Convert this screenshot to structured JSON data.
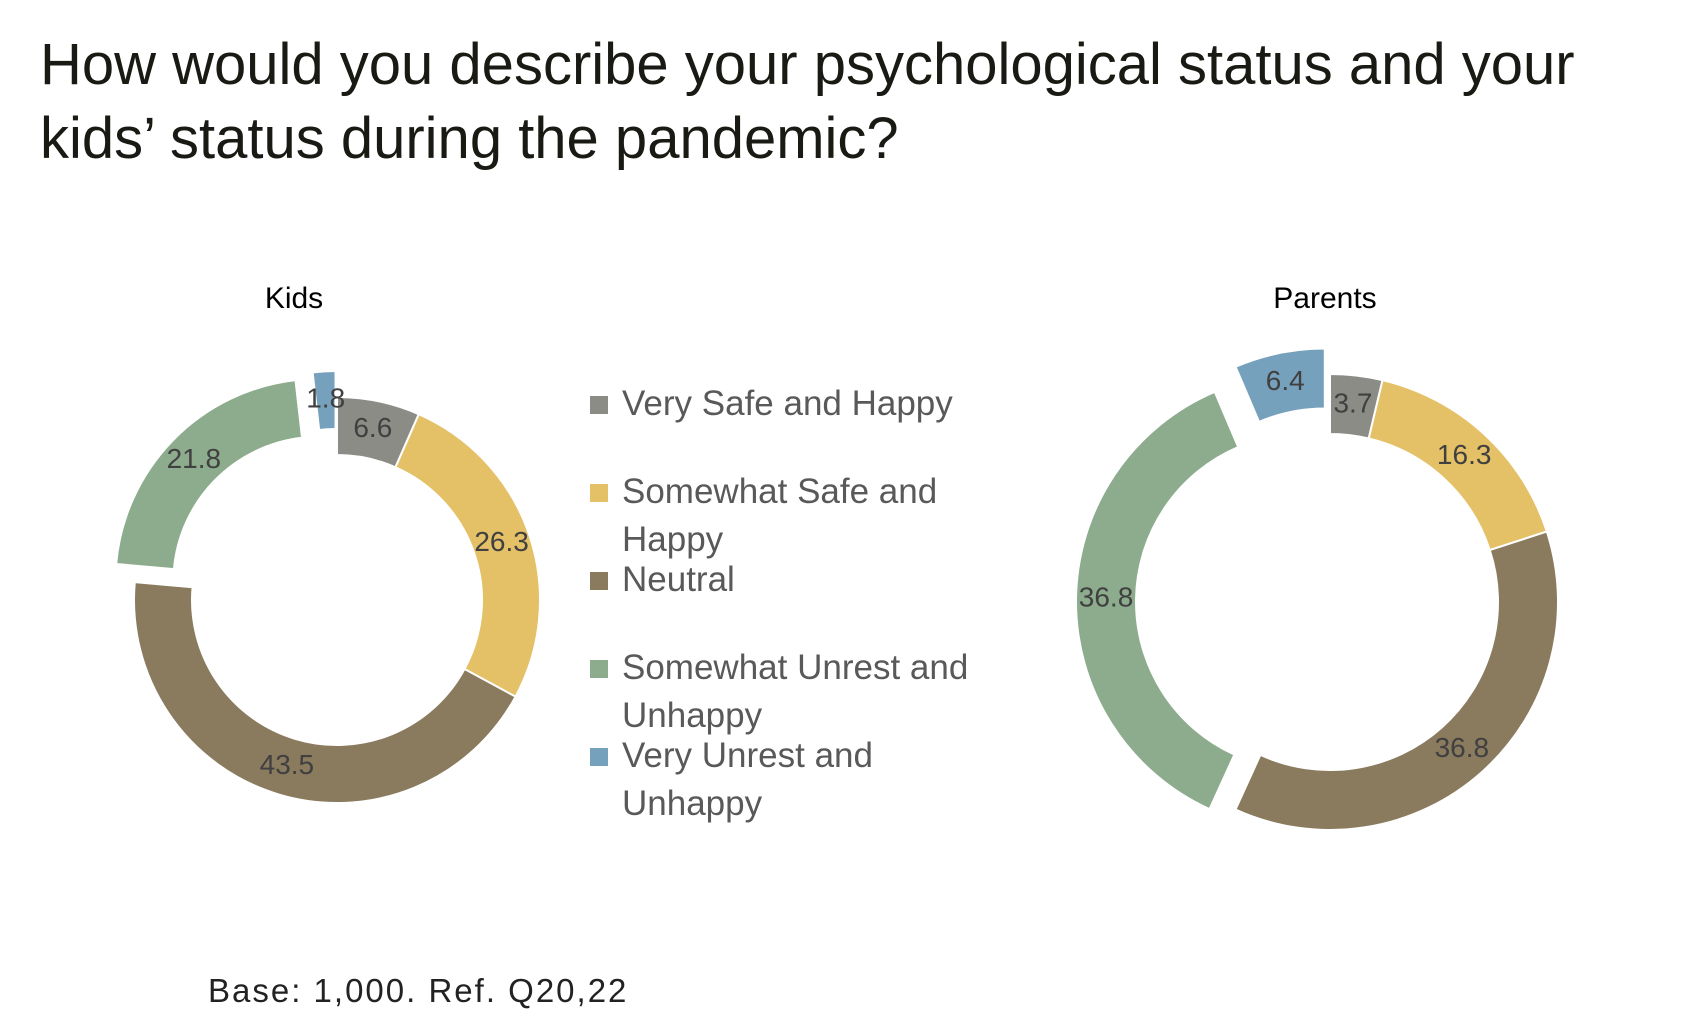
{
  "title": "How would you describe your psychological status and your kids’ status during the pandemic?",
  "footnote": "Base: 1,000. Ref. Q20,22",
  "chart_data": [
    {
      "type": "donut",
      "title": "Kids",
      "categories": [
        "Very Safe and Happy",
        "Somewhat Safe and Happy",
        "Neutral",
        "Somewhat Unrest and Unhappy",
        "Very Unrest and Unhappy"
      ],
      "values": [
        6.6,
        26.3,
        43.5,
        21.8,
        1.8
      ],
      "colors": [
        "#8c8c87",
        "#e4c067",
        "#8a7a5e",
        "#8dab8d",
        "#76a1bd"
      ],
      "exploded": [
        false,
        false,
        false,
        true,
        true
      ]
    },
    {
      "type": "donut",
      "title": "Parents",
      "categories": [
        "Very Safe and Happy",
        "Somewhat Safe and Happy",
        "Neutral",
        "Somewhat Unrest and Unhappy",
        "Very Unrest and Unhappy"
      ],
      "values": [
        3.7,
        16.3,
        36.8,
        36.8,
        6.4
      ],
      "colors": [
        "#8c8c87",
        "#e4c067",
        "#8a7a5e",
        "#8dab8d",
        "#76a1bd"
      ],
      "exploded": [
        false,
        false,
        false,
        true,
        true
      ]
    }
  ]
}
